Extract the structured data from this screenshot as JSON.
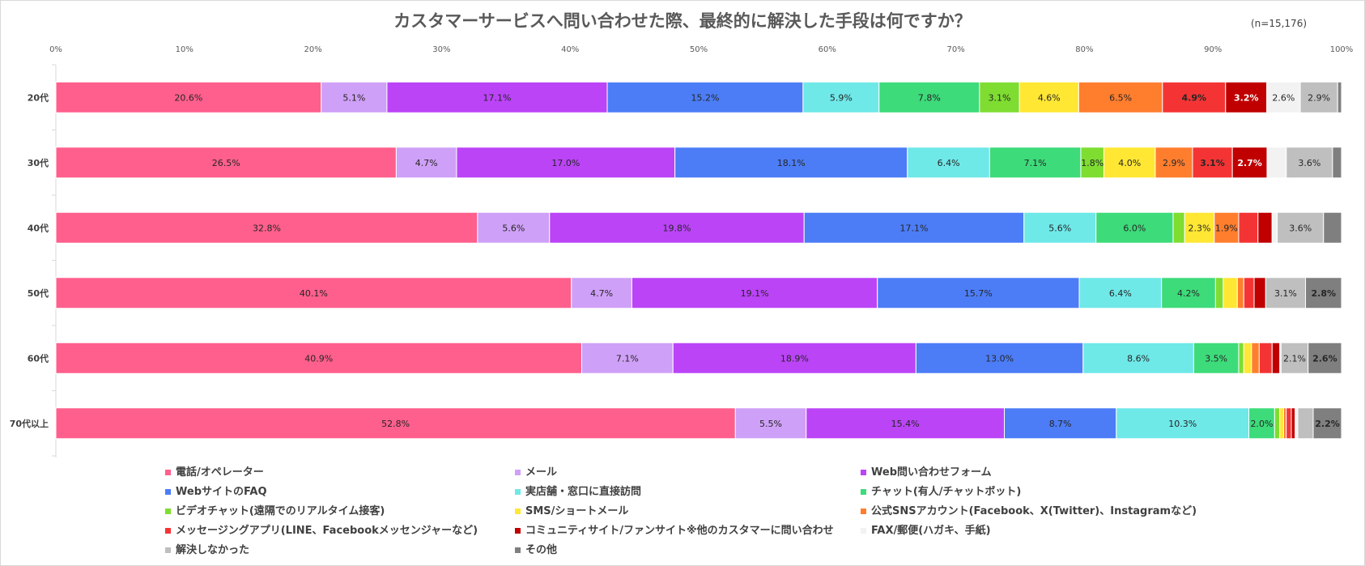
{
  "title": "カスタマーサービスへ問い合わせた際、最終的に解決した手段は何ですか？",
  "n_label": "(n=15,176)",
  "chart_data": {
    "type": "bar",
    "orientation": "horizontal",
    "stacked": "percent",
    "title": "カスタマーサービスへ問い合わせた際、最終的に解決した手段は何ですか？",
    "xlim": [
      0,
      100
    ],
    "x_ticks": [
      "0%",
      "10%",
      "20%",
      "30%",
      "40%",
      "50%",
      "60%",
      "70%",
      "80%",
      "90%",
      "100%"
    ],
    "grid": false,
    "legend_position": "bottom",
    "categories": [
      "20代",
      "30代",
      "40代",
      "50代",
      "60代",
      "70代以上"
    ],
    "series": [
      {
        "name": "電話/オペレーター",
        "color": "#FF5F8C",
        "values": [
          20.6,
          26.5,
          32.8,
          40.1,
          40.9,
          52.8
        ],
        "labels": [
          "20.6%",
          "26.5%",
          "32.8%",
          "40.1%",
          "40.9%",
          "52.8%"
        ]
      },
      {
        "name": "メール",
        "color": "#CFA0F7",
        "values": [
          5.1,
          4.7,
          5.6,
          4.7,
          7.1,
          5.5
        ],
        "labels": [
          "5.1%",
          "4.7%",
          "5.6%",
          "4.7%",
          "7.1%",
          "5.5%"
        ]
      },
      {
        "name": "Web問い合わせフォーム",
        "color": "#BB44F7",
        "values": [
          17.1,
          17.0,
          19.8,
          19.1,
          18.9,
          15.4
        ],
        "labels": [
          "17.1%",
          "17.0%",
          "19.8%",
          "19.1%",
          "18.9%",
          "15.4%"
        ]
      },
      {
        "name": "WebサイトのFAQ",
        "color": "#4C7DF7",
        "values": [
          15.2,
          18.1,
          17.1,
          15.7,
          13.0,
          8.7
        ],
        "labels": [
          "15.2%",
          "18.1%",
          "17.1%",
          "15.7%",
          "13.0%",
          "8.7%"
        ]
      },
      {
        "name": "実店舗・窓口に直接訪問",
        "color": "#6FE8E8",
        "values": [
          5.9,
          6.4,
          5.6,
          6.4,
          8.6,
          10.3
        ],
        "labels": [
          "5.9%",
          "6.4%",
          "5.6%",
          "6.4%",
          "8.6%",
          "10.3%"
        ]
      },
      {
        "name": "チャット(有人/チャットボット)",
        "color": "#3DDB7A",
        "values": [
          7.8,
          7.1,
          6.0,
          4.2,
          3.5,
          2.0
        ],
        "labels": [
          "7.8%",
          "7.1%",
          "6.0%",
          "4.2%",
          "3.5%",
          "2.0%"
        ]
      },
      {
        "name": "ビデオチャット(遠隔でのリアルタイム接客)",
        "color": "#7FDD32",
        "values": [
          3.1,
          1.8,
          0.9,
          0.6,
          0.4,
          0.4
        ],
        "labels": [
          "3.1%",
          "1.8%",
          "0.9%",
          "0.6%",
          "0.4%",
          "0.4%"
        ]
      },
      {
        "name": "SMS/ショートメール",
        "color": "#FFE733",
        "values": [
          4.6,
          4.0,
          2.3,
          1.1,
          0.6,
          0.3
        ],
        "labels": [
          "4.6%",
          "4.0%",
          "2.3%",
          "1.1%",
          "0.6%",
          "0.3%"
        ]
      },
      {
        "name": "公式SNSアカウント(Facebook、X(Twitter)、Instagramなど)",
        "color": "#FF7E2E",
        "values": [
          6.5,
          2.9,
          1.9,
          0.5,
          0.6,
          0.2
        ],
        "labels": [
          "6.5%",
          "2.9%",
          "1.9%",
          "0.5%",
          "0.6%",
          "0.2%"
        ]
      },
      {
        "name": "メッセージングアプリ(LINE、Facebookメッセンジャーなど)",
        "color": "#F43434",
        "values": [
          4.9,
          3.1,
          1.5,
          0.8,
          1.0,
          0.4
        ],
        "labels": [
          "4.9%",
          "3.1%",
          "1.5%",
          "0.8%",
          "1.0%",
          "0.4%"
        ]
      },
      {
        "name": "コミュニティサイト/ファンサイト※他のカスタマーに問い合わせ",
        "color": "#C00000",
        "values": [
          3.2,
          2.7,
          1.1,
          0.9,
          0.6,
          0.3
        ],
        "labels": [
          "3.2%",
          "2.7%",
          "1.1%",
          "0.9%",
          "0.6%",
          "0.3%"
        ]
      },
      {
        "name": "FAX/郵便(ハガキ、手紙)",
        "color": "#F2F2F2",
        "values": [
          2.6,
          1.5,
          0.4,
          0.0,
          0.1,
          0.2
        ],
        "labels": [
          "2.6%",
          "1.5%",
          "0.4%",
          "0.0%",
          "0.1%",
          "0.2%"
        ]
      },
      {
        "name": "解決しなかった",
        "color": "#BFBFBF",
        "values": [
          2.9,
          3.6,
          3.6,
          3.1,
          2.1,
          1.2
        ],
        "labels": [
          "2.9%",
          "3.6%",
          "3.6%",
          "3.1%",
          "2.1%",
          "1.2%"
        ]
      },
      {
        "name": "その他",
        "color": "#7F7F7F",
        "values": [
          0.3,
          0.7,
          1.4,
          2.8,
          2.6,
          2.2
        ],
        "labels": [
          "0.3%",
          "0.7%",
          "1.4%",
          "2.8%",
          "2.6%",
          "2.2%"
        ]
      }
    ]
  }
}
